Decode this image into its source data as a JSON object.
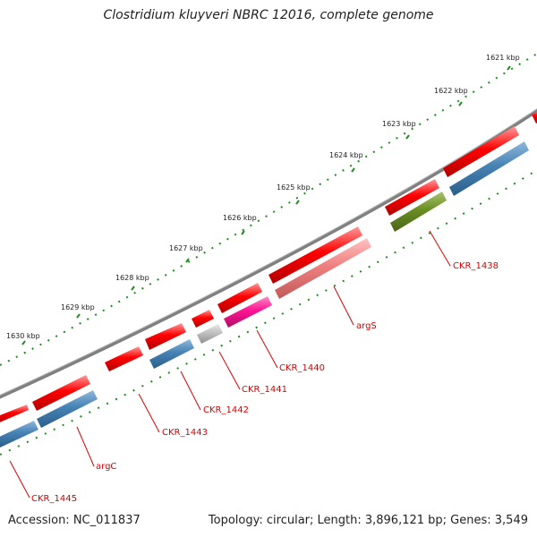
{
  "title": "Clostridium kluyveri NBRC 12016, complete genome",
  "footer": {
    "accession": "Accession: NC_011837",
    "stats": "Topology: circular; Length: 3,896,121 bp; Genes: 3,549"
  },
  "ruler": {
    "labels": [
      "1621 kbp",
      "1622 kbp",
      "1623 kbp",
      "1624 kbp",
      "1625 kbp",
      "1626 kbp",
      "1627 kbp",
      "1628 kbp",
      "1629 kbp",
      "1630 kbp"
    ]
  },
  "genes": [
    {
      "label": "CKR_1438",
      "color": "#6b8e23"
    },
    {
      "label": "argS",
      "color": "#f08080"
    },
    {
      "label": "CKR_1440",
      "color": "#ff1493"
    },
    {
      "label": "CKR_1441",
      "color": "#c0c0c0"
    },
    {
      "label": "CKR_1442",
      "color": "#4682b4"
    },
    {
      "label": "CKR_1443",
      "color": "#ff0000"
    },
    {
      "label": "argC",
      "color": "#4682b4"
    },
    {
      "label": "CKR_1445",
      "color": "#4682b4"
    }
  ],
  "colors": {
    "backbone": "#808080",
    "cds": "#ff0000",
    "orf": "#4682b4",
    "ticks": "#228b22",
    "label_text": "#dd0000"
  }
}
